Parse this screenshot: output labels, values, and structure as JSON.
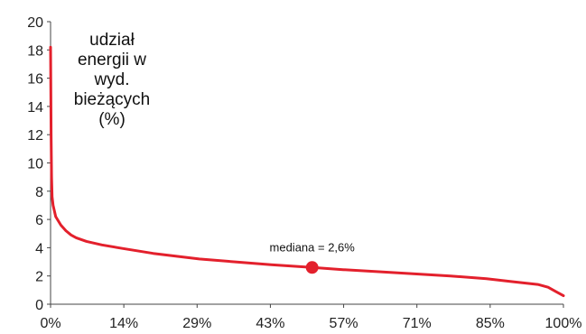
{
  "chart_data": {
    "type": "line",
    "title": "",
    "ylabel_lines": [
      "udział",
      "energii w",
      "wyd.",
      "bieżących",
      "(%)"
    ],
    "xlabel": "",
    "x_ticks": [
      "0%",
      "14%",
      "29%",
      "43%",
      "57%",
      "71%",
      "85%",
      "100%"
    ],
    "y_ticks": [
      "0",
      "2",
      "4",
      "6",
      "8",
      "10",
      "12",
      "14",
      "16",
      "18",
      "20"
    ],
    "xlim": [
      0,
      100
    ],
    "ylim": [
      0,
      20
    ],
    "grid": false,
    "line_color": "#e3202c",
    "series": [
      {
        "points": [
          [
            0,
            18.2
          ],
          [
            0.1,
            12.0
          ],
          [
            0.2,
            9.0
          ],
          [
            0.3,
            7.6
          ],
          [
            0.5,
            7.0
          ],
          [
            1,
            6.2
          ],
          [
            2,
            5.6
          ],
          [
            3,
            5.2
          ],
          [
            4,
            4.9
          ],
          [
            5,
            4.7
          ],
          [
            7,
            4.45
          ],
          [
            10,
            4.2
          ],
          [
            14,
            3.95
          ],
          [
            20,
            3.6
          ],
          [
            29,
            3.2
          ],
          [
            36,
            3.0
          ],
          [
            43,
            2.8
          ],
          [
            51,
            2.6
          ],
          [
            57,
            2.45
          ],
          [
            64,
            2.3
          ],
          [
            71,
            2.15
          ],
          [
            78,
            2.0
          ],
          [
            85,
            1.8
          ],
          [
            90,
            1.6
          ],
          [
            95,
            1.4
          ],
          [
            97,
            1.2
          ],
          [
            98.5,
            0.9
          ],
          [
            100,
            0.6
          ]
        ]
      }
    ],
    "annotation": {
      "label": "mediana = 2,6%",
      "x": 51,
      "y": 2.6
    }
  }
}
